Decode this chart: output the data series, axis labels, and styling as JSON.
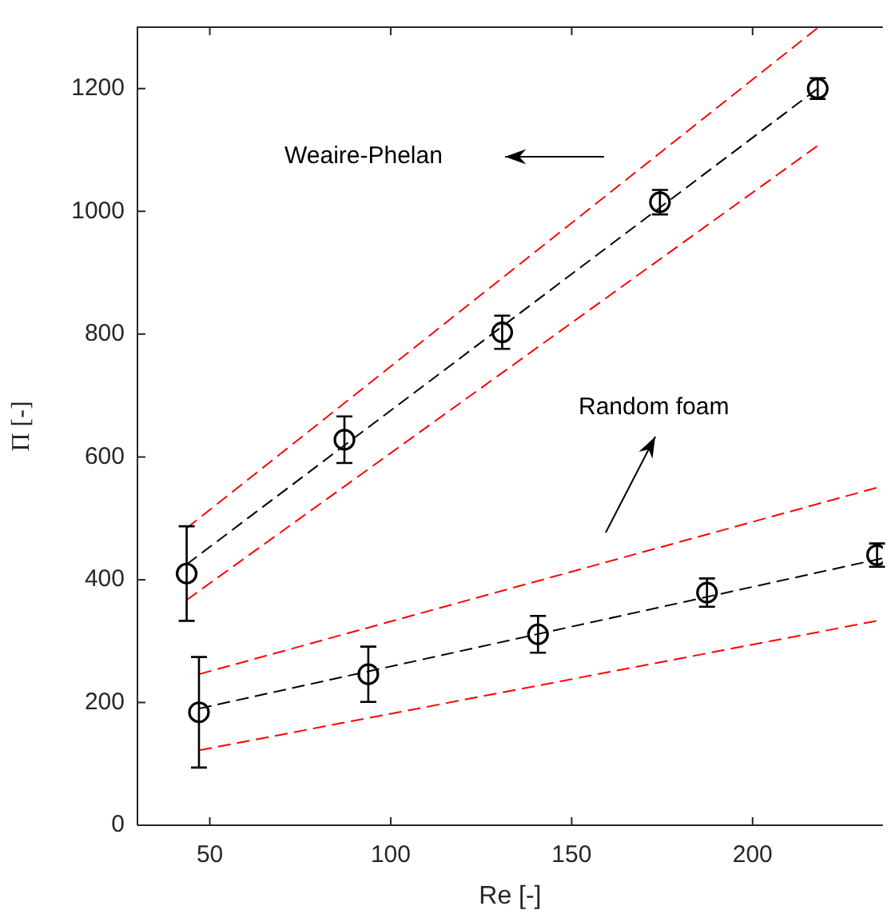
{
  "chart_data": {
    "type": "scatter",
    "xlabel": "Re [-]",
    "ylabel": "Π [-]",
    "xlim": [
      30,
      236
    ],
    "ylim": [
      0,
      1300
    ],
    "xticks": [
      50,
      100,
      150,
      200
    ],
    "yticks": [
      0,
      200,
      400,
      600,
      800,
      1000,
      1200
    ],
    "grid": false,
    "legend": false,
    "annotations": [
      "Weaire-Phelan",
      "Random foam"
    ],
    "series": [
      {
        "type": "scatter",
        "color": "#000000",
        "marker": "circle",
        "x": [
          43.6,
          87.2,
          130.8,
          174.4,
          218
        ],
        "values": [
          410,
          628,
          803,
          1015,
          1200
        ],
        "errors": [
          77,
          38,
          27,
          20,
          17
        ]
      },
      {
        "type": "scatter",
        "color": "#000000",
        "marker": "circle",
        "x": [
          47,
          93.8,
          140.7,
          187.4,
          234.4
        ],
        "values": [
          184,
          246,
          311,
          379,
          440
        ],
        "errors": [
          90,
          45,
          30,
          23,
          19
        ]
      },
      {
        "type": "line",
        "color": "#000000",
        "line_style": "dashed",
        "x": [
          43.6,
          218
        ],
        "values": [
          425,
          1200
        ]
      },
      {
        "type": "line",
        "color": "#ff0000",
        "line_style": "dashed",
        "marker": "none",
        "x": [
          43.6,
          218
        ],
        "values": [
          484,
          1299
        ]
      },
      {
        "type": "line",
        "color": "#ff0000",
        "line_style": "dashed",
        "marker": "none",
        "x": [
          43.6,
          218
        ],
        "values": [
          367,
          1107
        ]
      },
      {
        "type": "line",
        "color": "#000000",
        "line_style": "dashed",
        "marker": "none",
        "x": [
          47,
          236
        ],
        "values": [
          190,
          435
        ]
      },
      {
        "type": "line",
        "color": "#ff0000",
        "line_style": "dashed",
        "marker": "none",
        "x": [
          47,
          234.4
        ],
        "values": [
          246,
          550
        ]
      },
      {
        "type": "line",
        "color": "#ff0000",
        "line_style": "dashed",
        "marker": "none",
        "x": [
          47,
          234.4
        ],
        "values": [
          122,
          333
        ]
      }
    ]
  }
}
